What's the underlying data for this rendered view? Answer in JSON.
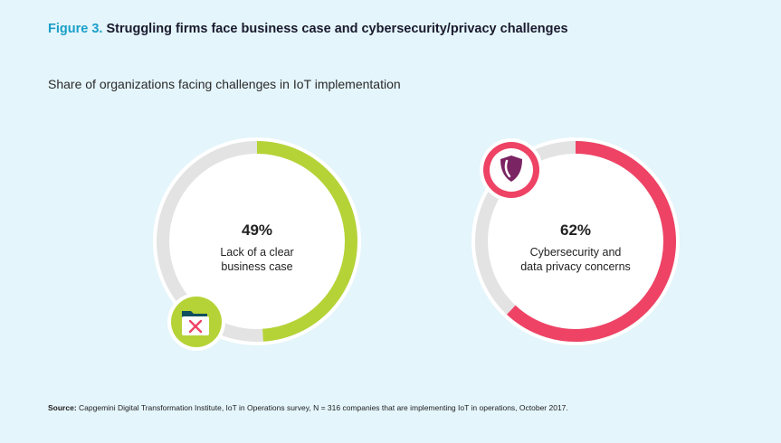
{
  "header": {
    "figure_label": "Figure 3.",
    "title": "Struggling firms face business case and cybersecurity/privacy challenges",
    "subtitle": "Share of organizations facing challenges in IoT implementation"
  },
  "chart_data": [
    {
      "type": "pie",
      "title": "",
      "value_label": "49%",
      "values": [
        49
      ],
      "label_lines": [
        "Lack of a clear",
        "business case"
      ],
      "color": "#b5d336",
      "track_color": "#e3e3e3",
      "icon": "folder-x-icon"
    },
    {
      "type": "pie",
      "title": "",
      "value_label": "62%",
      "values": [
        62
      ],
      "label_lines": [
        "Cybersecurity and",
        "data privacy concerns"
      ],
      "color": "#ee4365",
      "track_color": "#e3e3e3",
      "icon": "shield-icon"
    }
  ],
  "footer": {
    "source_label": "Source:",
    "source_text": "Capgemini Digital Transformation Institute, IoT in Operations survey, N = 316 companies that are implementing IoT in operations, October 2017."
  }
}
